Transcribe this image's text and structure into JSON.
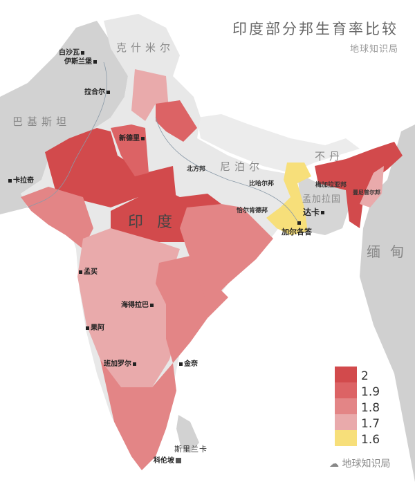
{
  "title": "印度部分邦生育率比较",
  "subtitle": "地球知识局",
  "colors": {
    "c2": "#d24a4c",
    "c19": "#dc6365",
    "c18": "#e38586",
    "c17": "#e9aaab",
    "c16": "#f7df7a",
    "neighbor": "#d2d2d2",
    "india_other": "#e8e8e8"
  },
  "countries": {
    "kashmir": "克什米尔",
    "pakistan": "巴基斯坦",
    "nepal": "尼泊尔",
    "bhutan": "不丹",
    "bangladesh": "孟加拉国",
    "myanmar": "缅甸",
    "srilanka": "斯里兰卡",
    "india": "印度"
  },
  "cities": {
    "peshawar": "白沙瓦",
    "islamabad": "伊斯兰堡",
    "lahore": "拉合尔",
    "delhi": "新德里",
    "karachi": "卡拉奇",
    "dhaka": "达卡",
    "kolkata": "加尔各答",
    "mumbai": "孟买",
    "hyderabad": "海得拉巴",
    "goa": "果阿",
    "bangalore": "班加罗尔",
    "chennai": "金奈",
    "colombo": "科伦坡"
  },
  "states": {
    "up": "北方邦",
    "bihar": "比哈尔邦",
    "jharkhand": "恰尔肯德邦",
    "meghalaya": "梅加拉亚邦",
    "manipur": "曼尼普尔邦"
  },
  "legend": [
    {
      "label": "2",
      "color": "#d24a4c"
    },
    {
      "label": "1.9",
      "color": "#dc6365"
    },
    {
      "label": "1.8",
      "color": "#e38586"
    },
    {
      "label": "1.7",
      "color": "#e9aaab"
    },
    {
      "label": "1.6",
      "color": "#f7df7a"
    }
  ],
  "watermark": "地球知识局"
}
